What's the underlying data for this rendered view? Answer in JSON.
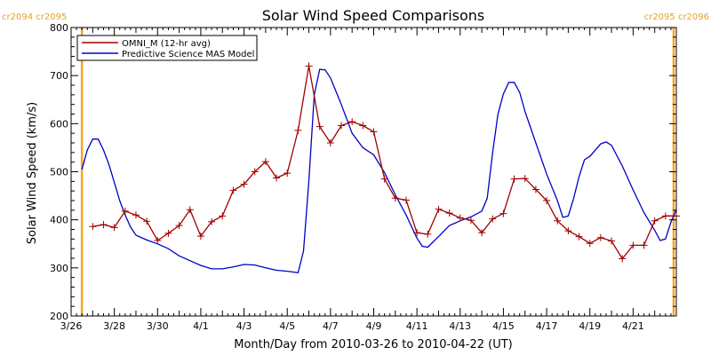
{
  "chart_data": {
    "type": "line",
    "title": "Solar Wind Speed Comparisons",
    "xlabel": "Month/Day from 2010-03-26 to 2010-04-22 (UT)",
    "ylabel": "Solar Wind Speed (km/s)",
    "ylim": [
      200,
      800
    ],
    "yticks": [
      200,
      300,
      400,
      500,
      600,
      700,
      800
    ],
    "xlim": [
      "2010-03-26",
      "2010-04-23"
    ],
    "x_ticks": [
      {
        "date": "2010-03-26",
        "label": "3/26"
      },
      {
        "date": "2010-03-28",
        "label": "3/28"
      },
      {
        "date": "2010-03-30",
        "label": "3/30"
      },
      {
        "date": "2010-04-01",
        "label": "4/1"
      },
      {
        "date": "2010-04-03",
        "label": "4/3"
      },
      {
        "date": "2010-04-05",
        "label": "4/5"
      },
      {
        "date": "2010-04-07",
        "label": "4/7"
      },
      {
        "date": "2010-04-09",
        "label": "4/9"
      },
      {
        "date": "2010-04-11",
        "label": "4/11"
      },
      {
        "date": "2010-04-13",
        "label": "4/13"
      },
      {
        "date": "2010-04-15",
        "label": "4/15"
      },
      {
        "date": "2010-04-17",
        "label": "4/17"
      },
      {
        "date": "2010-04-19",
        "label": "4/19"
      },
      {
        "date": "2010-04-21",
        "label": "4/21"
      }
    ],
    "grid": false,
    "legend_position": "top-left",
    "carrington_markers": [
      {
        "date": "2010-03-26 12:00",
        "label": "cr2094 cr2095",
        "color": "#f5a623",
        "label_anchor": "left"
      },
      {
        "date": "2010-04-22 21:00",
        "label": "cr2095 cr2096",
        "color": "#f5a623",
        "label_anchor": "right"
      }
    ],
    "series": [
      {
        "name": "OMNI_M (12-hr avg)",
        "color": "#a00000",
        "marker": "plus",
        "points": [
          [
            "2010-03-27 00:00",
            386
          ],
          [
            "2010-03-27 12:00",
            390
          ],
          [
            "2010-03-28 00:00",
            384
          ],
          [
            "2010-03-28 12:00",
            418
          ],
          [
            "2010-03-29 00:00",
            410
          ],
          [
            "2010-03-29 12:00",
            397
          ],
          [
            "2010-03-30 00:00",
            357
          ],
          [
            "2010-03-30 12:00",
            372
          ],
          [
            "2010-03-31 00:00",
            388
          ],
          [
            "2010-03-31 12:00",
            421
          ],
          [
            "2010-04-01 00:00",
            366
          ],
          [
            "2010-04-01 12:00",
            396
          ],
          [
            "2010-04-02 00:00",
            408
          ],
          [
            "2010-04-02 12:00",
            461
          ],
          [
            "2010-04-03 00:00",
            474
          ],
          [
            "2010-04-03 12:00",
            500
          ],
          [
            "2010-04-04 00:00",
            521
          ],
          [
            "2010-04-04 12:00",
            487
          ],
          [
            "2010-04-05 00:00",
            497
          ],
          [
            "2010-04-05 12:00",
            586
          ],
          [
            "2010-04-06 00:00",
            720
          ],
          [
            "2010-04-06 12:00",
            594
          ],
          [
            "2010-04-07 00:00",
            560
          ],
          [
            "2010-04-07 12:00",
            596
          ],
          [
            "2010-04-08 00:00",
            604
          ],
          [
            "2010-04-08 12:00",
            596
          ],
          [
            "2010-04-09 00:00",
            583
          ],
          [
            "2010-04-09 12:00",
            485
          ],
          [
            "2010-04-10 00:00",
            445
          ],
          [
            "2010-04-10 12:00",
            441
          ],
          [
            "2010-04-11 00:00",
            373
          ],
          [
            "2010-04-11 12:00",
            370
          ],
          [
            "2010-04-12 00:00",
            422
          ],
          [
            "2010-04-12 12:00",
            414
          ],
          [
            "2010-04-13 00:00",
            404
          ],
          [
            "2010-04-13 12:00",
            399
          ],
          [
            "2010-04-14 00:00",
            373
          ],
          [
            "2010-04-14 12:00",
            402
          ],
          [
            "2010-04-15 00:00",
            413
          ],
          [
            "2010-04-15 12:00",
            485
          ],
          [
            "2010-04-16 00:00",
            486
          ],
          [
            "2010-04-16 12:00",
            463
          ],
          [
            "2010-04-17 00:00",
            440
          ],
          [
            "2010-04-17 12:00",
            398
          ],
          [
            "2010-04-18 00:00",
            377
          ],
          [
            "2010-04-18 12:00",
            365
          ],
          [
            "2010-04-19 00:00",
            351
          ],
          [
            "2010-04-19 12:00",
            363
          ],
          [
            "2010-04-20 00:00",
            356
          ],
          [
            "2010-04-20 12:00",
            319
          ],
          [
            "2010-04-21 00:00",
            347
          ],
          [
            "2010-04-21 12:00",
            347
          ],
          [
            "2010-04-22 00:00",
            398
          ],
          [
            "2010-04-22 12:00",
            408
          ],
          [
            "2010-04-23 00:00",
            408
          ]
        ]
      },
      {
        "name": "Predictive Science MAS Model",
        "color": "#0000c8",
        "marker": "none",
        "points": [
          [
            "2010-03-26 12:00",
            505
          ],
          [
            "2010-03-26 18:00",
            545
          ],
          [
            "2010-03-27 00:00",
            568
          ],
          [
            "2010-03-27 06:00",
            568
          ],
          [
            "2010-03-27 12:00",
            545
          ],
          [
            "2010-03-27 18:00",
            515
          ],
          [
            "2010-03-28 00:00",
            478
          ],
          [
            "2010-03-28 06:00",
            440
          ],
          [
            "2010-03-28 12:00",
            410
          ],
          [
            "2010-03-28 18:00",
            385
          ],
          [
            "2010-03-29 00:00",
            368
          ],
          [
            "2010-03-29 12:00",
            358
          ],
          [
            "2010-03-30 00:00",
            350
          ],
          [
            "2010-03-30 12:00",
            340
          ],
          [
            "2010-03-31 00:00",
            325
          ],
          [
            "2010-03-31 12:00",
            315
          ],
          [
            "2010-04-01 00:00",
            305
          ],
          [
            "2010-04-01 12:00",
            298
          ],
          [
            "2010-04-02 00:00",
            298
          ],
          [
            "2010-04-02 12:00",
            302
          ],
          [
            "2010-04-03 00:00",
            307
          ],
          [
            "2010-04-03 12:00",
            306
          ],
          [
            "2010-04-04 00:00",
            300
          ],
          [
            "2010-04-04 12:00",
            295
          ],
          [
            "2010-04-05 00:00",
            293
          ],
          [
            "2010-04-05 12:00",
            290
          ],
          [
            "2010-04-05 18:00",
            335
          ],
          [
            "2010-04-06 00:00",
            480
          ],
          [
            "2010-04-06 06:00",
            660
          ],
          [
            "2010-04-06 12:00",
            713
          ],
          [
            "2010-04-06 18:00",
            712
          ],
          [
            "2010-04-07 00:00",
            695
          ],
          [
            "2010-04-07 12:00",
            640
          ],
          [
            "2010-04-08 00:00",
            580
          ],
          [
            "2010-04-08 12:00",
            550
          ],
          [
            "2010-04-09 00:00",
            535
          ],
          [
            "2010-04-09 12:00",
            498
          ],
          [
            "2010-04-10 00:00",
            452
          ],
          [
            "2010-04-10 12:00",
            410
          ],
          [
            "2010-04-11 00:00",
            362
          ],
          [
            "2010-04-11 06:00",
            345
          ],
          [
            "2010-04-11 12:00",
            343
          ],
          [
            "2010-04-12 00:00",
            365
          ],
          [
            "2010-04-12 12:00",
            388
          ],
          [
            "2010-04-13 00:00",
            398
          ],
          [
            "2010-04-13 12:00",
            406
          ],
          [
            "2010-04-14 00:00",
            418
          ],
          [
            "2010-04-14 06:00",
            445
          ],
          [
            "2010-04-14 12:00",
            540
          ],
          [
            "2010-04-14 18:00",
            620
          ],
          [
            "2010-04-15 00:00",
            662
          ],
          [
            "2010-04-15 06:00",
            686
          ],
          [
            "2010-04-15 12:00",
            686
          ],
          [
            "2010-04-15 18:00",
            665
          ],
          [
            "2010-04-16 00:00",
            625
          ],
          [
            "2010-04-16 12:00",
            560
          ],
          [
            "2010-04-17 00:00",
            495
          ],
          [
            "2010-04-17 12:00",
            440
          ],
          [
            "2010-04-17 18:00",
            405
          ],
          [
            "2010-04-18 00:00",
            408
          ],
          [
            "2010-04-18 06:00",
            445
          ],
          [
            "2010-04-18 12:00",
            490
          ],
          [
            "2010-04-18 18:00",
            525
          ],
          [
            "2010-04-19 00:00",
            532
          ],
          [
            "2010-04-19 12:00",
            558
          ],
          [
            "2010-04-19 18:00",
            562
          ],
          [
            "2010-04-20 00:00",
            555
          ],
          [
            "2010-04-20 12:00",
            512
          ],
          [
            "2010-04-21 00:00",
            462
          ],
          [
            "2010-04-21 12:00",
            415
          ],
          [
            "2010-04-22 00:00",
            378
          ],
          [
            "2010-04-22 06:00",
            357
          ],
          [
            "2010-04-22 12:00",
            360
          ],
          [
            "2010-04-22 18:00",
            395
          ],
          [
            "2010-04-23 00:00",
            422
          ]
        ]
      }
    ]
  }
}
